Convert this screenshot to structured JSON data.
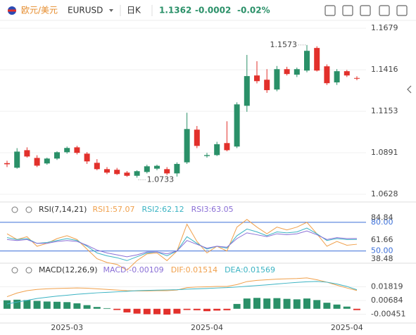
{
  "header": {
    "pair_cn": "欧元/美元",
    "symbol": "EURUSD",
    "period": "日K",
    "price": "1.1362",
    "change": "-0.0002",
    "change_pct": "-0.02%"
  },
  "chart_data": [
    {
      "type": "candlestick",
      "up_color": "#2a9068",
      "down_color": "#e2302b",
      "grid": true,
      "categories": [
        null,
        null,
        null,
        null,
        null,
        null,
        "2025-03",
        null,
        null,
        null,
        null,
        null,
        null,
        null,
        null,
        null,
        null,
        null,
        null,
        null,
        "2025-04",
        null,
        null,
        null,
        null,
        null,
        null,
        null,
        null,
        null,
        null,
        null,
        null,
        null,
        "2025-04",
        null
      ],
      "open": [
        1.0825,
        1.0796,
        1.0907,
        1.0858,
        1.0823,
        1.0854,
        1.0894,
        1.0925,
        1.0885,
        1.0827,
        1.0787,
        1.0783,
        1.0765,
        1.0745,
        1.0769,
        1.079,
        1.0787,
        1.076,
        1.083,
        1.1037,
        1.087,
        1.0876,
        1.0952,
        1.093,
        1.1188,
        1.138,
        1.1353,
        1.1291,
        1.142,
        1.1385,
        1.1411,
        1.1554,
        1.1438,
        1.1336,
        1.1407,
        1.1364
      ],
      "high": [
        1.084,
        1.092,
        1.0925,
        1.0875,
        1.086,
        1.09,
        1.093,
        1.0935,
        1.0895,
        1.085,
        1.08,
        1.0795,
        1.0775,
        1.078,
        1.0815,
        1.0815,
        1.08,
        1.083,
        1.1144,
        1.106,
        1.089,
        1.096,
        1.109,
        1.121,
        1.151,
        1.147,
        1.142,
        1.144,
        1.1435,
        1.143,
        1.1573,
        1.1565,
        1.145,
        1.142,
        1.1415,
        1.1375
      ],
      "low": [
        1.08,
        1.079,
        1.086,
        1.08,
        1.0815,
        1.0845,
        1.0885,
        1.088,
        1.082,
        1.078,
        1.0755,
        1.075,
        1.0738,
        1.0733,
        1.076,
        1.078,
        1.075,
        1.074,
        1.082,
        1.092,
        1.086,
        1.087,
        1.09,
        1.092,
        1.115,
        1.133,
        1.127,
        1.128,
        1.138,
        1.137,
        1.14,
        1.1405,
        1.132,
        1.132,
        1.137,
        1.135
      ],
      "close": [
        1.0818,
        1.0898,
        1.0867,
        1.0809,
        1.0854,
        1.0894,
        1.0921,
        1.089,
        1.0836,
        1.0787,
        1.0765,
        1.0756,
        1.0745,
        1.0774,
        1.0805,
        1.0808,
        1.076,
        1.082,
        1.1041,
        1.0934,
        1.0876,
        1.0945,
        1.0907,
        1.1197,
        1.1376,
        1.1344,
        1.1287,
        1.142,
        1.1389,
        1.142,
        1.1536,
        1.1411,
        1.1331,
        1.1407,
        1.138,
        1.1362
      ],
      "ylim": [
        1.0588,
        1.1724
      ],
      "yticks": [
        1.1679,
        1.1416,
        1.1153,
        1.0891,
        1.0628
      ],
      "annotations": [
        "1.1573",
        "1.0733"
      ]
    },
    {
      "type": "line",
      "title": "RSI(7,14,21)",
      "ylim": [
        38,
        88
      ],
      "yticks": [
        {
          "value": 80,
          "label": "80.00"
        },
        {
          "value": 50,
          "label": "50.00"
        }
      ],
      "tick_color": "#3b6fd8",
      "value_markers": [
        84.84,
        61.66,
        38.48
      ],
      "series": [
        {
          "name": "RSI1:57.07",
          "color": "#f0a04b",
          "values": [
            68,
            62,
            65,
            55,
            58,
            63,
            66,
            62,
            52,
            42,
            38,
            36,
            30,
            40,
            47,
            48,
            40,
            50,
            78,
            60,
            48,
            55,
            50,
            75,
            83,
            75,
            68,
            75,
            72,
            75,
            80,
            68,
            55,
            60,
            56,
            57.07
          ]
        },
        {
          "name": "RSI2:62.12",
          "color": "#3bb3c3",
          "values": [
            64,
            62,
            63,
            58,
            59,
            61,
            63,
            61,
            55,
            48,
            45,
            43,
            40,
            44,
            48,
            49,
            45,
            50,
            65,
            58,
            52,
            55,
            53,
            66,
            73,
            70,
            66,
            70,
            69,
            70,
            74,
            68,
            61,
            63,
            62,
            62.12
          ]
        },
        {
          "name": "RSI3:63.05",
          "color": "#8a6fd6",
          "values": [
            62,
            61,
            62,
            58,
            58,
            60,
            61,
            60,
            56,
            51,
            48,
            46,
            44,
            46,
            49,
            49,
            47,
            50,
            61,
            57,
            53,
            55,
            54,
            63,
            69,
            67,
            65,
            68,
            67,
            68,
            71,
            67,
            62,
            64,
            63,
            63.05
          ]
        }
      ]
    },
    {
      "type": "macd",
      "title": "MACD(12,26,9)",
      "ylim": [
        -0.0112,
        0.0272
      ],
      "yticks": [
        0.01819,
        0.00684,
        -0.00451
      ],
      "series": [
        {
          "name": "MACD:-0.00109",
          "color": "#8a6fd6",
          "type": "bar",
          "up_color": "#2a9068",
          "down_color": "#e2302b",
          "values": [
            0.007,
            0.0075,
            0.0072,
            0.0065,
            0.006,
            0.0058,
            0.0055,
            0.0045,
            0.003,
            0.0015,
            0.0005,
            -0.001,
            -0.003,
            -0.004,
            -0.0045,
            -0.0045,
            -0.0048,
            -0.004,
            -0.001,
            -0.0012,
            -0.002,
            -0.0015,
            -0.0012,
            0.004,
            0.0085,
            0.009,
            0.0085,
            0.0088,
            0.0082,
            0.0078,
            0.0085,
            0.0072,
            0.005,
            0.0035,
            0.0018,
            -0.00109
          ]
        },
        {
          "name": "DIF:0.01514",
          "color": "#f0a04b",
          "values": [
            0.01,
            0.013,
            0.015,
            0.016,
            0.0165,
            0.0168,
            0.017,
            0.0172,
            0.017,
            0.0165,
            0.016,
            0.0155,
            0.015,
            0.0148,
            0.0148,
            0.015,
            0.015,
            0.0155,
            0.0175,
            0.018,
            0.0182,
            0.0185,
            0.0185,
            0.02,
            0.0225,
            0.0235,
            0.024,
            0.0245,
            0.0248,
            0.025,
            0.0255,
            0.024,
            0.022,
            0.0195,
            0.0172,
            0.01514
          ]
        },
        {
          "name": "DEA:0.01569",
          "color": "#3bb3c3",
          "values": [
            0.004,
            0.0055,
            0.007,
            0.0085,
            0.0095,
            0.0105,
            0.0112,
            0.012,
            0.0126,
            0.0132,
            0.0136,
            0.014,
            0.0145,
            0.015,
            0.0152,
            0.0154,
            0.0156,
            0.0158,
            0.0162,
            0.0165,
            0.0168,
            0.0172,
            0.0175,
            0.018,
            0.0186,
            0.0192,
            0.0198,
            0.0205,
            0.0212,
            0.0218,
            0.0223,
            0.0226,
            0.022,
            0.0205,
            0.0185,
            0.01569
          ]
        }
      ]
    }
  ]
}
